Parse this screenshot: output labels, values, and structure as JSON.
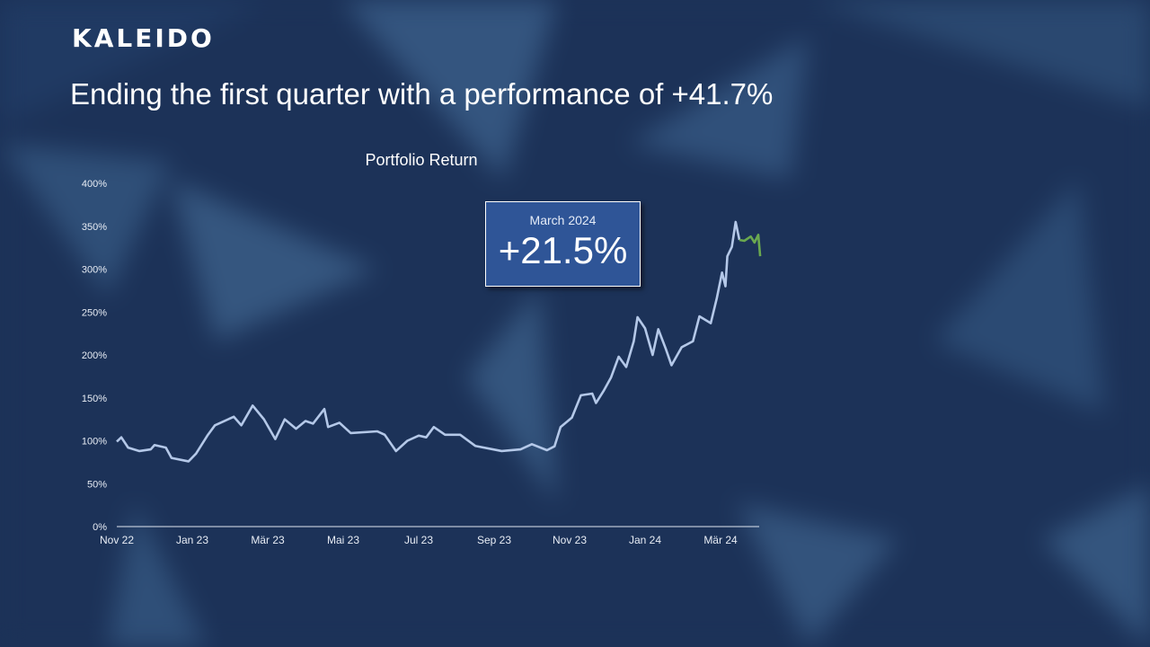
{
  "brand": {
    "logo": "KALEIDO"
  },
  "headline": "Ending the first quarter with a performance of +41.7%",
  "tooltip": {
    "label": "March 2024",
    "value": "+21.5%"
  },
  "colors": {
    "line": "#b4c8e8",
    "highlight": "#6aa84f",
    "background": "#1c3258"
  },
  "chart_data": {
    "type": "line",
    "title": "Portfolio Return",
    "xlabel": "",
    "ylabel": "",
    "x_unit": "months since Nov 2022",
    "xlim": [
      0,
      17.05
    ],
    "ylim": [
      0,
      400
    ],
    "yticks": [
      0,
      50,
      100,
      150,
      200,
      250,
      300,
      350,
      400
    ],
    "ytick_labels": [
      "0%",
      "50%",
      "100%",
      "150%",
      "200%",
      "250%",
      "300%",
      "350%",
      "400%"
    ],
    "xticks": [
      0,
      2,
      4,
      6,
      8,
      10,
      12,
      14,
      16
    ],
    "xtick_labels": [
      "Nov 22",
      "Jan 23",
      "Mär 23",
      "Mai 23",
      "Jul 23",
      "Sep 23",
      "Nov 23",
      "Jan 24",
      "Mär 24"
    ],
    "grid": false,
    "series": [
      {
        "name": "Portfolio",
        "color": "#b4c8e8",
        "points": [
          [
            0,
            99
          ],
          [
            0.12,
            104
          ],
          [
            0.3,
            92
          ],
          [
            0.6,
            88
          ],
          [
            0.9,
            90
          ],
          [
            1.0,
            95
          ],
          [
            1.3,
            92
          ],
          [
            1.45,
            80
          ],
          [
            1.9,
            76
          ],
          [
            2.1,
            85
          ],
          [
            2.4,
            106
          ],
          [
            2.6,
            118
          ],
          [
            2.85,
            123
          ],
          [
            3.1,
            128
          ],
          [
            3.3,
            118
          ],
          [
            3.6,
            141
          ],
          [
            3.9,
            125
          ],
          [
            4.2,
            102
          ],
          [
            4.45,
            125
          ],
          [
            4.75,
            114
          ],
          [
            5.0,
            123
          ],
          [
            5.2,
            120
          ],
          [
            5.5,
            137
          ],
          [
            5.6,
            116
          ],
          [
            5.9,
            121
          ],
          [
            6.2,
            109
          ],
          [
            6.9,
            111
          ],
          [
            7.1,
            107
          ],
          [
            7.4,
            88
          ],
          [
            7.7,
            100
          ],
          [
            8.0,
            106
          ],
          [
            8.2,
            104
          ],
          [
            8.4,
            116
          ],
          [
            8.7,
            107
          ],
          [
            9.1,
            107
          ],
          [
            9.5,
            94
          ],
          [
            10.2,
            88
          ],
          [
            10.7,
            90
          ],
          [
            11.0,
            96
          ],
          [
            11.4,
            89
          ],
          [
            11.6,
            93.5
          ],
          [
            11.76,
            116
          ],
          [
            12.06,
            127
          ],
          [
            12.3,
            153
          ],
          [
            12.6,
            155
          ],
          [
            12.7,
            144
          ],
          [
            12.9,
            158
          ],
          [
            13.1,
            174
          ],
          [
            13.3,
            198
          ],
          [
            13.5,
            186
          ],
          [
            13.7,
            216
          ],
          [
            13.8,
            244
          ],
          [
            14.0,
            231
          ],
          [
            14.2,
            200
          ],
          [
            14.35,
            230
          ],
          [
            14.55,
            207
          ],
          [
            14.7,
            188
          ],
          [
            14.97,
            209
          ],
          [
            15.27,
            216
          ],
          [
            15.44,
            245
          ],
          [
            15.74,
            237
          ],
          [
            15.9,
            266
          ],
          [
            16.04,
            296
          ],
          [
            16.13,
            280
          ],
          [
            16.18,
            315
          ],
          [
            16.3,
            326
          ],
          [
            16.4,
            355
          ],
          [
            16.5,
            334
          ]
        ]
      },
      {
        "name": "March 2024",
        "color": "#6aa84f",
        "points": [
          [
            16.5,
            334
          ],
          [
            16.63,
            333
          ],
          [
            16.8,
            338
          ],
          [
            16.9,
            331
          ],
          [
            17.0,
            340
          ],
          [
            17.05,
            315
          ]
        ]
      }
    ]
  }
}
